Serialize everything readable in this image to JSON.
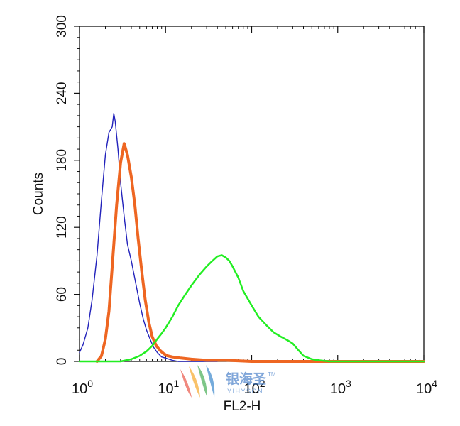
{
  "chart_data": {
    "type": "line",
    "title": "",
    "xlabel": "FL2-H",
    "ylabel": "Counts",
    "x_scale": "log",
    "xlim": [
      1,
      10000
    ],
    "ylim": [
      0,
      300
    ],
    "x_ticks": [
      {
        "value": 1,
        "base": "10",
        "exp": "0"
      },
      {
        "value": 10,
        "base": "10",
        "exp": "1"
      },
      {
        "value": 100,
        "base": "10",
        "exp": "2"
      },
      {
        "value": 1000,
        "base": "10",
        "exp": "3"
      },
      {
        "value": 10000,
        "base": "10",
        "exp": "4"
      }
    ],
    "y_ticks": [
      "0",
      "60",
      "120",
      "180",
      "240",
      "300"
    ],
    "grid": false,
    "series": [
      {
        "color": "#2222bb",
        "stroke_width": 1.4,
        "x": [
          1,
          1.1,
          1.25,
          1.4,
          1.6,
          1.8,
          2.0,
          2.2,
          2.4,
          2.5,
          2.6,
          2.8,
          3.0,
          3.3,
          3.6,
          4.0,
          4.5,
          5.0,
          5.5,
          6.0,
          6.6,
          7.2,
          8.0,
          9.0,
          10.0,
          11.0,
          12.0,
          14.0,
          20.0,
          40.0
        ],
        "y": [
          8,
          15,
          30,
          55,
          95,
          145,
          185,
          205,
          210,
          222,
          215,
          190,
          160,
          130,
          105,
          90,
          70,
          52,
          38,
          28,
          20,
          13,
          8,
          4,
          3,
          2,
          1,
          0,
          0,
          0
        ]
      },
      {
        "color": "#ee6622",
        "stroke_width": 4,
        "x": [
          1.6,
          1.8,
          2.0,
          2.2,
          2.4,
          2.7,
          3.0,
          3.3,
          3.6,
          4.0,
          4.4,
          4.8,
          5.3,
          5.8,
          6.4,
          7.0,
          7.8,
          8.6,
          9.5,
          10.5,
          12.0,
          15.0,
          20.0,
          30.0,
          50.0,
          100.0,
          200.0,
          400.0,
          1000.0,
          10000.0
        ],
        "y": [
          0,
          5,
          20,
          45,
          85,
          140,
          178,
          195,
          185,
          165,
          140,
          110,
          80,
          55,
          35,
          22,
          14,
          10,
          7,
          5,
          4,
          3,
          2,
          1,
          1,
          0,
          0,
          0,
          0,
          0
        ]
      },
      {
        "color": "#22ee22",
        "stroke_width": 2.5,
        "x": [
          1,
          3.0,
          4.0,
          5.0,
          6.0,
          7.0,
          8.0,
          9.0,
          10.0,
          12.0,
          14.0,
          17.0,
          20.0,
          25.0,
          30.0,
          35.0,
          40.0,
          45.0,
          50.0,
          55.0,
          60.0,
          70.0,
          80.0,
          100.0,
          120.0,
          150.0,
          180.0,
          220.0,
          260.0,
          300.0,
          350.0,
          400.0,
          500.0,
          600.0,
          800.0,
          1000.0,
          10000.0
        ],
        "y": [
          0,
          0,
          2,
          5,
          9,
          14,
          20,
          25,
          30,
          40,
          50,
          60,
          68,
          78,
          85,
          90,
          94,
          95,
          93,
          90,
          85,
          75,
          63,
          50,
          40,
          32,
          26,
          22,
          19,
          16,
          10,
          5,
          2,
          1,
          0,
          0,
          0
        ]
      }
    ]
  }
}
